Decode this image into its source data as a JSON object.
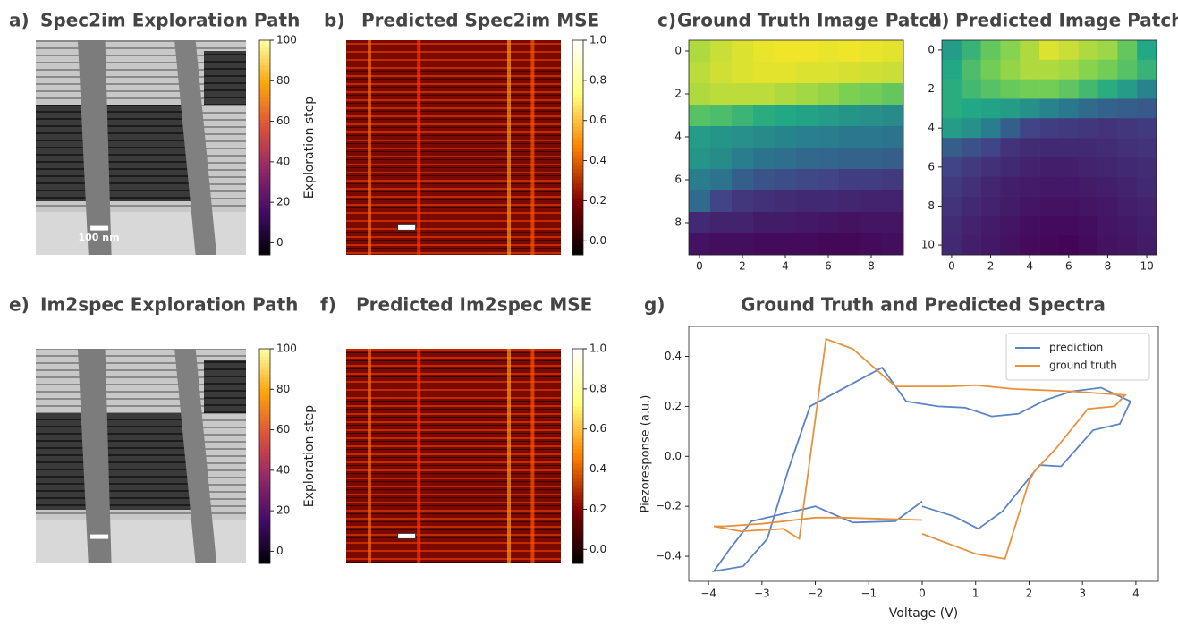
{
  "chart_data": [
    {
      "type": "image",
      "label": "a)",
      "title": "Spec2im Exploration Path",
      "scalebar": "100 nm",
      "colorbar": {
        "label": "Exploration step",
        "colormap": "inferno",
        "clim": [
          -6,
          100
        ],
        "ticks": [
          0,
          20,
          40,
          60,
          80,
          100
        ]
      }
    },
    {
      "type": "image",
      "label": "b)",
      "title": "Predicted Spec2im MSE",
      "colorbar": {
        "colormap": "afmhot",
        "clim": [
          -0.07,
          1.0
        ],
        "ticks": [
          {
            "value": 0,
            "label": "0.0"
          },
          0.2,
          0.4,
          0.6,
          0.8,
          {
            "value": 1,
            "label": "1.0"
          }
        ]
      }
    },
    {
      "type": "heatmap",
      "label": "c)",
      "title": "Ground Truth Image Patch",
      "colormap": "viridis",
      "clim": [
        0,
        1
      ],
      "xlim": [
        -0.5,
        9.5
      ],
      "ylim": [
        9.5,
        -0.5
      ],
      "xticks": [
        0,
        2,
        4,
        6,
        8
      ],
      "yticks": [
        0,
        2,
        4,
        6,
        8
      ],
      "values": [
        [
          0.88,
          0.92,
          0.95,
          0.97,
          0.98,
          0.98,
          0.97,
          0.98,
          0.97,
          0.96
        ],
        [
          0.9,
          0.93,
          0.95,
          0.96,
          0.96,
          0.95,
          0.95,
          0.94,
          0.93,
          0.92
        ],
        [
          0.88,
          0.9,
          0.9,
          0.9,
          0.88,
          0.86,
          0.84,
          0.8,
          0.78,
          0.75
        ],
        [
          0.72,
          0.7,
          0.66,
          0.62,
          0.6,
          0.58,
          0.55,
          0.52,
          0.5,
          0.48
        ],
        [
          0.55,
          0.52,
          0.5,
          0.48,
          0.45,
          0.43,
          0.42,
          0.4,
          0.4,
          0.38
        ],
        [
          0.52,
          0.48,
          0.42,
          0.38,
          0.36,
          0.34,
          0.33,
          0.32,
          0.32,
          0.3
        ],
        [
          0.42,
          0.38,
          0.3,
          0.26,
          0.24,
          0.22,
          0.2,
          0.18,
          0.18,
          0.17
        ],
        [
          0.35,
          0.2,
          0.16,
          0.14,
          0.13,
          0.12,
          0.12,
          0.11,
          0.1,
          0.1
        ],
        [
          0.12,
          0.1,
          0.1,
          0.08,
          0.08,
          0.07,
          0.06,
          0.05,
          0.06,
          0.06
        ],
        [
          0.05,
          0.04,
          0.04,
          0.03,
          0.03,
          0.03,
          0.02,
          0.02,
          0.03,
          0.04
        ]
      ]
    },
    {
      "type": "heatmap",
      "label": "d)",
      "title": "Predicted Image Patch",
      "colormap": "viridis",
      "clim": [
        0,
        1
      ],
      "xlim": [
        -0.5,
        10.5
      ],
      "ylim": [
        10.5,
        -0.5
      ],
      "xticks": [
        0,
        2,
        4,
        6,
        8,
        10
      ],
      "yticks": [
        0,
        2,
        4,
        6,
        8,
        10
      ],
      "values": [
        [
          0.55,
          0.65,
          0.75,
          0.82,
          0.88,
          0.95,
          0.92,
          0.88,
          0.85,
          0.75,
          0.6
        ],
        [
          0.6,
          0.7,
          0.78,
          0.84,
          0.88,
          0.88,
          0.86,
          0.82,
          0.78,
          0.72,
          0.65
        ],
        [
          0.62,
          0.68,
          0.72,
          0.76,
          0.78,
          0.78,
          0.74,
          0.68,
          0.62,
          0.55,
          0.45
        ],
        [
          0.62,
          0.6,
          0.58,
          0.55,
          0.5,
          0.45,
          0.4,
          0.35,
          0.32,
          0.3,
          0.28
        ],
        [
          0.55,
          0.5,
          0.42,
          0.3,
          0.2,
          0.18,
          0.17,
          0.16,
          0.15,
          0.16,
          0.17
        ],
        [
          0.3,
          0.25,
          0.2,
          0.15,
          0.13,
          0.12,
          0.12,
          0.12,
          0.13,
          0.14,
          0.15
        ],
        [
          0.2,
          0.17,
          0.14,
          0.12,
          0.1,
          0.09,
          0.09,
          0.1,
          0.11,
          0.12,
          0.13
        ],
        [
          0.17,
          0.14,
          0.11,
          0.09,
          0.08,
          0.07,
          0.07,
          0.08,
          0.09,
          0.1,
          0.12
        ],
        [
          0.15,
          0.12,
          0.1,
          0.08,
          0.06,
          0.05,
          0.05,
          0.06,
          0.07,
          0.09,
          0.1
        ],
        [
          0.13,
          0.1,
          0.08,
          0.06,
          0.04,
          0.03,
          0.03,
          0.04,
          0.06,
          0.07,
          0.09
        ],
        [
          0.12,
          0.09,
          0.07,
          0.05,
          0.03,
          0.02,
          0.01,
          0.03,
          0.05,
          0.06,
          0.08
        ]
      ]
    },
    {
      "type": "image",
      "label": "e)",
      "title": "Im2spec Exploration Path",
      "colorbar": {
        "label": "Exploration step",
        "colormap": "inferno",
        "clim": [
          -6,
          100
        ],
        "ticks": [
          0,
          20,
          40,
          60,
          80,
          100
        ]
      }
    },
    {
      "type": "image",
      "label": "f)",
      "title": "Predicted Im2spec MSE",
      "colorbar": {
        "colormap": "afmhot",
        "clim": [
          -0.07,
          1.0
        ],
        "ticks": [
          {
            "value": 0,
            "label": "0.0"
          },
          0.2,
          0.4,
          0.6,
          0.8,
          {
            "value": 1,
            "label": "1.0"
          }
        ]
      }
    },
    {
      "type": "line",
      "label": "g)",
      "title": "Ground Truth and Predicted Spectra",
      "x_label": "Voltage (V)",
      "y_label": "Piezoresponse (a.u.)",
      "legend": "upper right",
      "xlim": [
        -4.37,
        4.42
      ],
      "ylim": [
        -0.5,
        0.52
      ],
      "xticks": [
        {
          "value": -4,
          "label": "−4"
        },
        {
          "value": -3,
          "label": "−3"
        },
        {
          "value": -2,
          "label": "−2"
        },
        {
          "value": -1,
          "label": "−1"
        },
        0,
        1,
        2,
        3,
        4
      ],
      "yticks": [
        {
          "value": -0.4,
          "label": "−0.4"
        },
        {
          "value": -0.2,
          "label": "−0.2"
        },
        {
          "value": 0,
          "label": "0.0"
        },
        0.2,
        0.4
      ],
      "series": [
        {
          "name": "prediction",
          "color": "#5b84c4",
          "x": [
            0,
            -0.5,
            -1.3,
            -2,
            -3.2,
            -3.6,
            -3.9,
            -3.35,
            -2.9,
            -2.5,
            -2.1,
            -0.75,
            -0.3,
            0.3,
            0.8,
            1.3,
            1.8,
            2.3,
            2.8,
            3.35,
            3.9,
            3.7,
            3.2,
            2.6,
            2.2,
            1.5,
            1.05,
            0.6,
            0
          ],
          "values": [
            -0.18,
            -0.26,
            -0.265,
            -0.2,
            -0.26,
            -0.37,
            -0.46,
            -0.44,
            -0.33,
            -0.05,
            0.2,
            0.355,
            0.22,
            0.2,
            0.195,
            0.16,
            0.17,
            0.225,
            0.26,
            0.275,
            0.22,
            0.13,
            0.105,
            -0.04,
            -0.035,
            -0.22,
            -0.29,
            -0.24,
            -0.2
          ]
        },
        {
          "name": "ground truth",
          "color": "#e8913d",
          "x": [
            0,
            -1.5,
            -2,
            -3,
            -3.7,
            -3.9,
            -3.4,
            -2.6,
            -2.3,
            -1.8,
            -1.3,
            -0.5,
            0.5,
            1,
            1.7,
            2.8,
            3.8,
            3.6,
            3.1,
            2.5,
            2.1,
            2,
            1.55,
            1,
            0
          ],
          "values": [
            -0.255,
            -0.245,
            -0.245,
            -0.27,
            -0.28,
            -0.28,
            -0.3,
            -0.29,
            -0.33,
            0.47,
            0.43,
            0.28,
            0.28,
            0.285,
            0.27,
            0.26,
            0.245,
            0.2,
            0.19,
            0.03,
            -0.06,
            -0.1,
            -0.41,
            -0.39,
            -0.31
          ]
        }
      ]
    }
  ]
}
